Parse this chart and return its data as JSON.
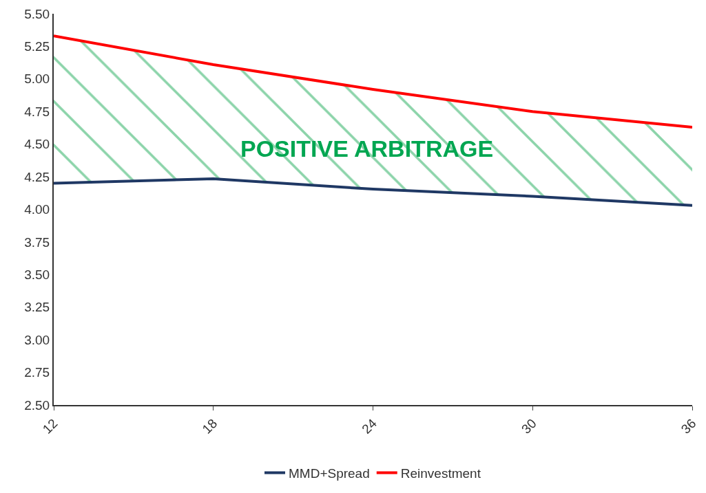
{
  "chart_data": {
    "type": "line",
    "x": [
      12,
      18,
      24,
      30,
      36
    ],
    "series": [
      {
        "name": "MMD+Spread",
        "color": "#1f3864",
        "values": [
          4.2,
          4.235,
          4.155,
          4.1,
          4.03
        ]
      },
      {
        "name": "Reinvestment",
        "color": "#ff0000",
        "values": [
          5.33,
          5.11,
          4.92,
          4.75,
          4.63
        ],
        "lower": [
          4.2,
          4.235,
          4.155,
          4.1,
          4.03
        ],
        "upper": [
          5.33,
          5.11,
          4.92,
          4.75,
          4.63
        ]
      }
    ],
    "annotations": [
      "POSITIVE ARBITRAGE"
    ],
    "xlim": [
      12,
      36
    ],
    "xticks": [
      12,
      18,
      24,
      30,
      36
    ],
    "ylim": [
      2.5,
      5.5
    ],
    "yticks": [
      {
        "value": 2.5,
        "label": "2.50"
      },
      {
        "value": 2.75,
        "label": "2.75"
      },
      {
        "value": 3.0,
        "label": "3.00"
      },
      {
        "value": 3.25,
        "label": "3.25"
      },
      {
        "value": 3.5,
        "label": "3.50"
      },
      {
        "value": 3.75,
        "label": "3.75"
      },
      {
        "value": 4.0,
        "label": "4.00"
      },
      {
        "value": 4.25,
        "label": "4.25"
      },
      {
        "value": 4.5,
        "label": "4.50"
      },
      {
        "value": 4.75,
        "label": "4.75"
      },
      {
        "value": 5.0,
        "label": "5.00"
      },
      {
        "value": 5.25,
        "label": "5.25"
      },
      {
        "value": 5.5,
        "label": "5.50"
      }
    ],
    "legend": "bottom",
    "marker": "none",
    "line_style": "solid"
  }
}
